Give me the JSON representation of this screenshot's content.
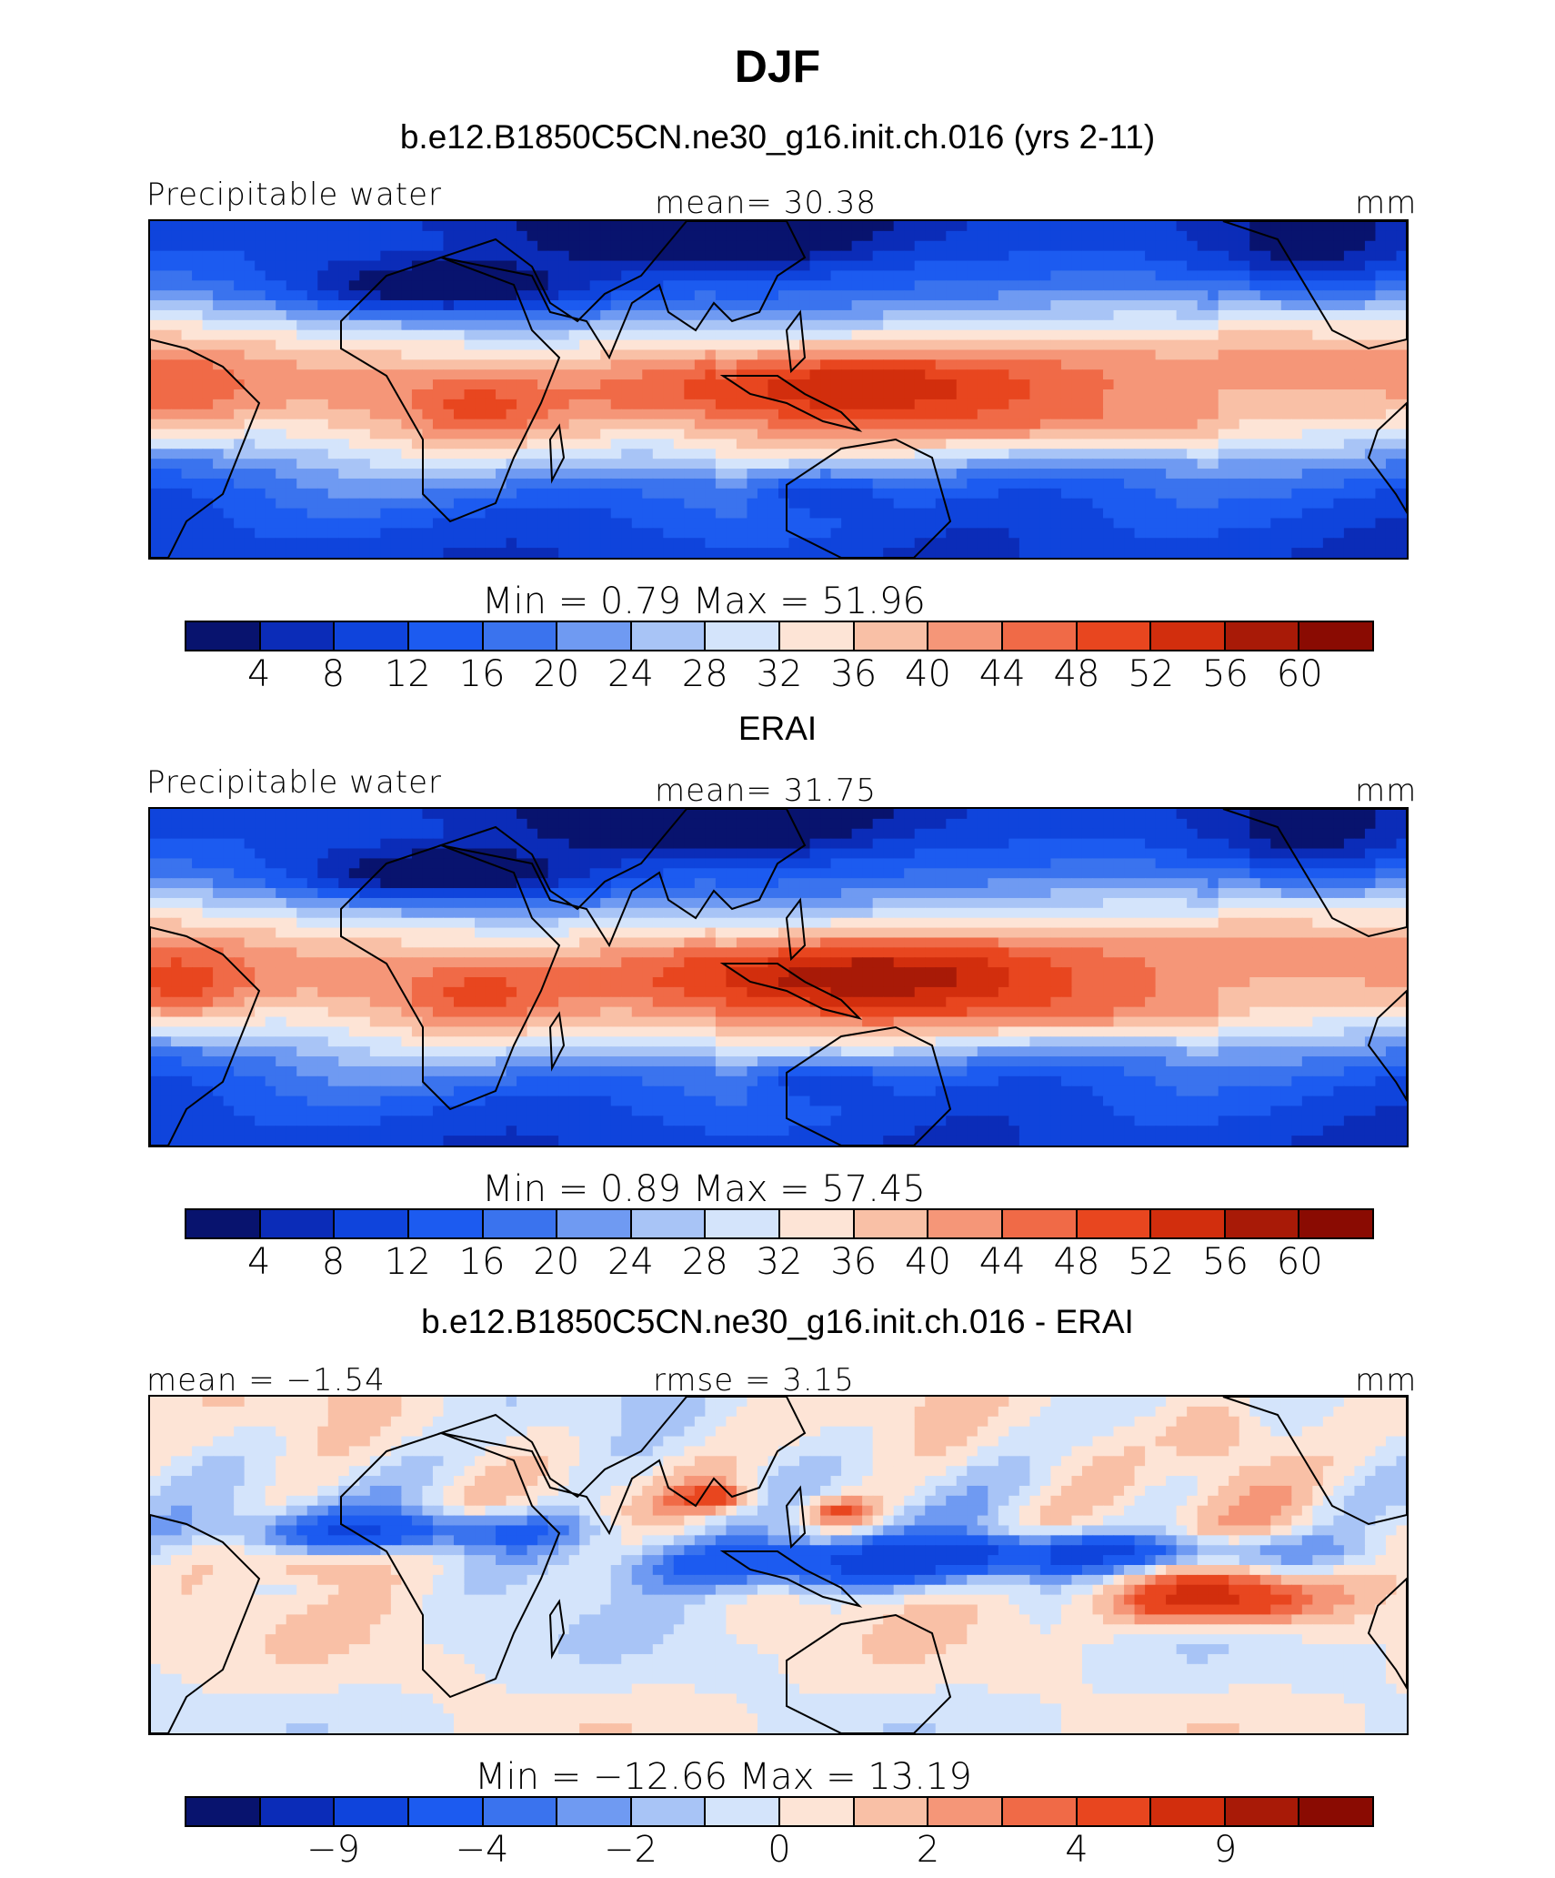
{
  "title": "DJF",
  "colors": [
    "#08136e",
    "#0b2cb8",
    "#0f44dc",
    "#1c5bf0",
    "#3a73ee",
    "#6f9af2",
    "#a8c4f6",
    "#d4e4fb",
    "#fde4d6",
    "#f9c0a6",
    "#f59678",
    "#f06a47",
    "#e8461f",
    "#d22e0d",
    "#a81a07",
    "#8a0b02"
  ],
  "panels": [
    {
      "title": "b.e12.B1850C5CN.ne30_g16.init.ch.016 (yrs 2-11)",
      "left_label": "Precipitable water",
      "center_label": "mean=   30.38",
      "right_label": "mm",
      "minmax": "Min  =     0.79  Max  =     51.96",
      "ticks": [
        "4",
        "8",
        "12",
        "16",
        "20",
        "24",
        "28",
        "32",
        "36",
        "40",
        "44",
        "48",
        "52",
        "56",
        "60"
      ],
      "kind": "model"
    },
    {
      "title": "ERAI",
      "left_label": "Precipitable water",
      "center_label": "mean=   31.75",
      "right_label": "mm",
      "minmax": "Min  =     0.89  Max  =     57.45",
      "ticks": [
        "4",
        "8",
        "12",
        "16",
        "20",
        "24",
        "28",
        "32",
        "36",
        "40",
        "44",
        "48",
        "52",
        "56",
        "60"
      ],
      "kind": "obs"
    },
    {
      "title": "b.e12.B1850C5CN.ne30_g16.init.ch.016 - ERAI",
      "left_label": "mean  =   −1.54",
      "center_label": "rmse  =      3.15",
      "right_label": "mm",
      "minmax": "Min  =  −12.66  Max  =     13.19",
      "ticks": [
        "−9",
        "−4",
        "−2",
        "0",
        "2",
        "4",
        "9"
      ],
      "kind": "diff"
    }
  ],
  "chart_data": [
    {
      "type": "heatmap",
      "title": "b.e12.B1850C5CN.ne30_g16.init.ch.016 (yrs 2-11)",
      "variable": "Precipitable water",
      "units": "mm",
      "mean": 30.38,
      "min": 0.79,
      "max": 51.96,
      "colorbar_levels": [
        4,
        8,
        12,
        16,
        20,
        24,
        28,
        32,
        36,
        40,
        44,
        48,
        52,
        56,
        60
      ]
    },
    {
      "type": "heatmap",
      "title": "ERAI",
      "variable": "Precipitable water",
      "units": "mm",
      "mean": 31.75,
      "min": 0.89,
      "max": 57.45,
      "colorbar_levels": [
        4,
        8,
        12,
        16,
        20,
        24,
        28,
        32,
        36,
        40,
        44,
        48,
        52,
        56,
        60
      ]
    },
    {
      "type": "heatmap",
      "title": "b.e12.B1850C5CN.ne30_g16.init.ch.016 - ERAI",
      "units": "mm",
      "mean": -1.54,
      "rmse": 3.15,
      "min": -12.66,
      "max": 13.19,
      "colorbar_levels": [
        -9,
        -4,
        -2,
        0,
        2,
        4,
        9
      ]
    }
  ]
}
